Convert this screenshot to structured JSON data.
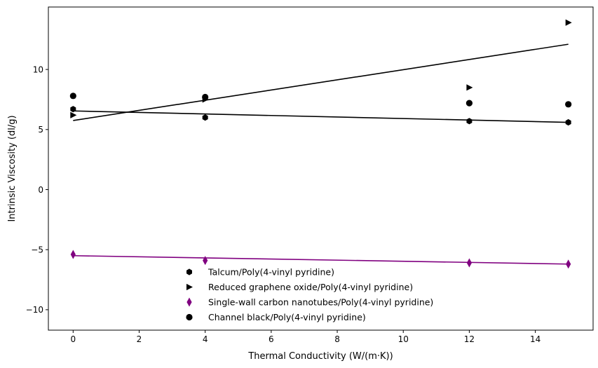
{
  "chart_data": {
    "type": "scatter",
    "xlabel": "Thermal Conductivity (W/(m·K))",
    "ylabel": "Intrinsic Viscosity (dl/g)",
    "xlim": [
      -0.75,
      15.75
    ],
    "ylim": [
      -11.7,
      15.2
    ],
    "x_ticks": [
      0,
      2,
      4,
      6,
      8,
      10,
      12,
      14
    ],
    "x_tick_labels": [
      "0",
      "2",
      "4",
      "6",
      "8",
      "10",
      "12",
      "14"
    ],
    "y_ticks": [
      -10,
      -5,
      0,
      5,
      10
    ],
    "y_tick_labels": [
      "−10",
      "−5",
      "0",
      "5",
      "10"
    ],
    "grid": false,
    "legend_position": "bottom-center",
    "series": [
      {
        "name": "Talcum/Poly(4-vinyl pyridine)",
        "marker": "hexagon",
        "color": "#000000",
        "x": [
          0,
          4,
          12,
          15
        ],
        "y": [
          6.7,
          6.0,
          5.7,
          5.6
        ]
      },
      {
        "name": "Reduced graphene oxide/Poly(4-vinyl pyridine)",
        "marker": "triangle-right",
        "color": "#000000",
        "x": [
          0,
          4,
          12,
          15
        ],
        "y": [
          6.2,
          7.5,
          8.5,
          13.9
        ]
      },
      {
        "name": "Single-wall carbon nanotubes/Poly(4-vinyl pyridine)",
        "marker": "thin-diamond",
        "color": "#800080",
        "x": [
          0,
          4,
          12,
          15
        ],
        "y": [
          -5.4,
          -5.9,
          -6.1,
          -6.2
        ]
      },
      {
        "name": "Channel black/Poly(4-vinyl pyridine)",
        "marker": "circle",
        "color": "#000000",
        "x": [
          0,
          4,
          12,
          15
        ],
        "y": [
          7.8,
          7.7,
          7.2,
          7.1
        ]
      }
    ],
    "trend_lines": [
      {
        "color": "#000000",
        "x": [
          0,
          15
        ],
        "y": [
          6.55,
          5.6
        ]
      },
      {
        "color": "#000000",
        "x": [
          0,
          15
        ],
        "y": [
          5.75,
          12.1
        ]
      },
      {
        "color": "#800080",
        "x": [
          0,
          15
        ],
        "y": [
          -5.5,
          -6.2
        ]
      }
    ]
  }
}
